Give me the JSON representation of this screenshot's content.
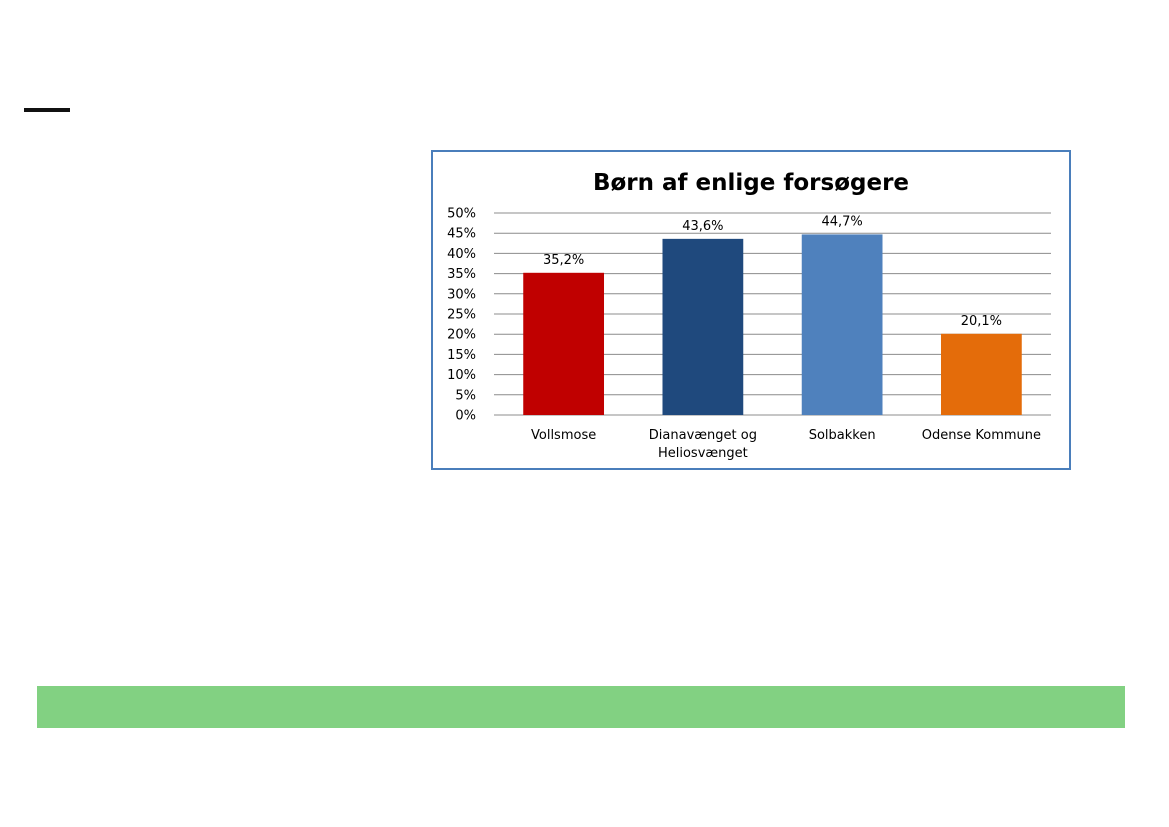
{
  "colors": {
    "chart_border": "#4a7ebb",
    "green_band": "#82d182",
    "grid": "#8c8c8c"
  },
  "chart_data": {
    "type": "bar",
    "title": "Børn af enlige forsøgere",
    "categories": [
      "Vollsmose",
      "Dianavænget og Heliosvænget",
      "Solbakken",
      "Odense Kommune"
    ],
    "category_lines": [
      [
        "Vollsmose"
      ],
      [
        "Dianavænget og",
        "Heliosvænget"
      ],
      [
        "Solbakken"
      ],
      [
        "Odense Kommune"
      ]
    ],
    "values": [
      35.2,
      43.6,
      44.7,
      20.1
    ],
    "value_labels": [
      "35,2%",
      "43,6%",
      "44,7%",
      "20,1%"
    ],
    "bar_colors": [
      "#c00000",
      "#1f497d",
      "#4f81bd",
      "#e46c0a"
    ],
    "yticks": [
      "0%",
      "5%",
      "10%",
      "15%",
      "20%",
      "25%",
      "30%",
      "35%",
      "40%",
      "45%",
      "50%"
    ],
    "ylim": [
      0,
      50
    ],
    "grid": true,
    "legend": "none"
  }
}
